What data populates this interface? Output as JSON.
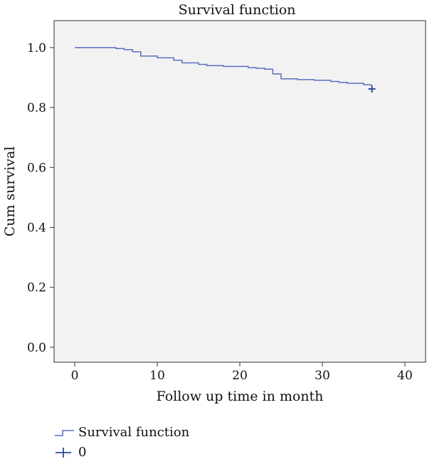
{
  "chart_data": {
    "type": "line",
    "title": "Survival function",
    "xlabel": "Follow up time in month",
    "ylabel": "Cum survival",
    "xlim": [
      -2.5,
      42.5
    ],
    "ylim": [
      -0.05,
      1.09
    ],
    "x_ticks": [
      "0",
      "10",
      "20",
      "30",
      "40"
    ],
    "x_tick_values": [
      0,
      10,
      20,
      30,
      40
    ],
    "y_ticks": [
      "0.0",
      "0.2",
      "0.4",
      "0.6",
      "0.8",
      "1.0"
    ],
    "y_tick_values": [
      0.0,
      0.2,
      0.4,
      0.6,
      0.8,
      1.0
    ],
    "grid": false,
    "legend_position": "bottom-left",
    "series": [
      {
        "name": "Survival function",
        "style": "step",
        "color": "#5b6fc2",
        "x": [
          0,
          5,
          6,
          7,
          8,
          10,
          12,
          13,
          15,
          16,
          18,
          21,
          22,
          23,
          24,
          25,
          27,
          29,
          31,
          32,
          33,
          35,
          36
        ],
        "y": [
          1.0,
          0.997,
          0.993,
          0.986,
          0.972,
          0.966,
          0.958,
          0.949,
          0.944,
          0.94,
          0.937,
          0.933,
          0.931,
          0.928,
          0.912,
          0.896,
          0.893,
          0.891,
          0.887,
          0.884,
          0.881,
          0.876,
          0.876
        ]
      },
      {
        "name": "0",
        "style": "censored",
        "color": "#2e4aa3",
        "x": [
          36
        ],
        "y": [
          0.862
        ]
      }
    ]
  }
}
